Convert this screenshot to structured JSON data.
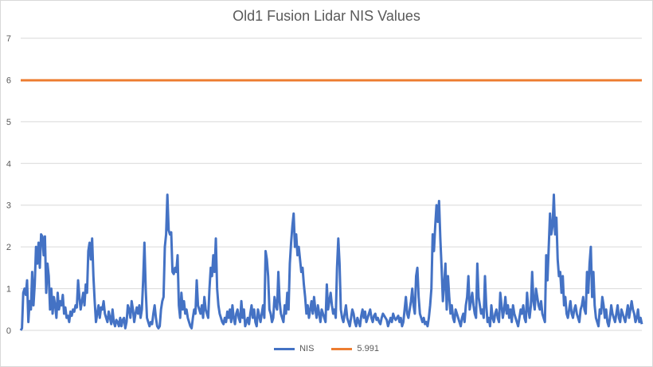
{
  "chart_data": {
    "type": "line",
    "title": "Old1 Fusion Lidar NIS Values",
    "xlabel": "",
    "ylabel": "",
    "ylim": [
      0,
      7
    ],
    "yticks": [
      "0",
      "1",
      "2",
      "3",
      "4",
      "5",
      "6",
      "7"
    ],
    "grid": true,
    "legend_position": "bottom",
    "series": [
      {
        "name": "NIS",
        "color": "#4472c4",
        "values": [
          0.0,
          0.05,
          0.9,
          1.0,
          0.85,
          1.2,
          0.2,
          0.7,
          0.5,
          1.4,
          0.6,
          1.1,
          2.0,
          1.6,
          2.1,
          1.5,
          2.3,
          2.25,
          1.8,
          2.25,
          0.9,
          1.6,
          1.3,
          0.5,
          1.0,
          0.4,
          0.8,
          0.6,
          0.3,
          0.9,
          0.5,
          0.7,
          0.6,
          0.85,
          0.4,
          0.55,
          0.3,
          0.35,
          0.2,
          0.45,
          0.35,
          0.5,
          0.45,
          0.6,
          0.55,
          1.2,
          0.8,
          0.5,
          0.7,
          0.9,
          0.6,
          1.1,
          0.9,
          1.9,
          2.1,
          1.7,
          2.2,
          1.3,
          0.7,
          0.2,
          0.4,
          0.6,
          0.3,
          0.55,
          0.5,
          0.7,
          0.4,
          0.3,
          0.2,
          0.45,
          0.3,
          0.15,
          0.5,
          0.2,
          0.1,
          0.25,
          0.2,
          0.1,
          0.3,
          0.1,
          0.25,
          0.3,
          0.05,
          0.2,
          0.6,
          0.5,
          0.3,
          0.7,
          0.5,
          0.2,
          0.4,
          0.55,
          0.4,
          0.6,
          0.3,
          0.5,
          1.2,
          2.1,
          1.0,
          0.3,
          0.2,
          0.1,
          0.2,
          0.15,
          0.4,
          0.6,
          0.3,
          0.1,
          0.05,
          0.1,
          0.5,
          0.7,
          0.8,
          2.0,
          2.3,
          3.25,
          2.4,
          2.3,
          2.35,
          1.4,
          1.35,
          1.5,
          1.4,
          1.8,
          0.6,
          0.3,
          0.9,
          0.5,
          0.7,
          0.4,
          0.5,
          0.3,
          0.2,
          0.1,
          0.05,
          0.3,
          0.5,
          0.4,
          1.2,
          0.6,
          0.5,
          0.4,
          0.6,
          0.3,
          0.8,
          0.5,
          0.4,
          0.3,
          1.0,
          1.5,
          1.3,
          1.8,
          1.4,
          2.2,
          1.0,
          0.6,
          0.4,
          0.3,
          0.2,
          0.15,
          0.3,
          0.2,
          0.45,
          0.3,
          0.5,
          0.2,
          0.6,
          0.3,
          0.15,
          0.4,
          0.5,
          0.3,
          0.2,
          0.7,
          0.3,
          0.5,
          0.1,
          0.2,
          0.3,
          0.15,
          0.4,
          0.6,
          0.3,
          0.5,
          0.2,
          0.1,
          0.5,
          0.35,
          0.2,
          0.4,
          0.6,
          0.3,
          1.9,
          1.7,
          1.3,
          0.5,
          0.4,
          0.2,
          0.3,
          0.8,
          0.6,
          0.5,
          1.4,
          0.7,
          0.4,
          0.3,
          0.2,
          0.6,
          0.4,
          0.9,
          0.5,
          1.6,
          2.1,
          2.5,
          2.8,
          2.0,
          2.3,
          1.8,
          2.0,
          1.7,
          1.4,
          1.5,
          1.1,
          0.8,
          0.4,
          0.6,
          0.3,
          0.5,
          0.7,
          0.4,
          0.8,
          0.5,
          0.3,
          0.6,
          0.4,
          0.2,
          0.5,
          0.4,
          0.3,
          0.2,
          1.1,
          0.5,
          0.7,
          0.9,
          0.6,
          0.4,
          0.5,
          0.3,
          1.5,
          2.2,
          1.6,
          0.5,
          0.3,
          0.2,
          0.4,
          0.6,
          0.3,
          0.2,
          0.1,
          0.3,
          0.5,
          0.4,
          0.2,
          0.1,
          0.3,
          0.2,
          0.1,
          0.35,
          0.5,
          0.3,
          0.45,
          0.2,
          0.3,
          0.4,
          0.5,
          0.3,
          0.2,
          0.35,
          0.4,
          0.25,
          0.3,
          0.2,
          0.15,
          0.3,
          0.4,
          0.35,
          0.3,
          0.25,
          0.1,
          0.2,
          0.3,
          0.2,
          0.4,
          0.3,
          0.25,
          0.3,
          0.35,
          0.2,
          0.3,
          0.1,
          0.2,
          0.5,
          0.8,
          0.4,
          0.3,
          0.5,
          0.7,
          1.0,
          0.6,
          0.4,
          1.3,
          1.5,
          0.8,
          0.4,
          0.3,
          0.2,
          0.3,
          0.15,
          0.2,
          0.1,
          0.3,
          0.6,
          1.0,
          2.3,
          1.9,
          2.5,
          3.0,
          2.6,
          3.1,
          2.2,
          1.5,
          0.7,
          1.1,
          1.6,
          0.5,
          1.3,
          0.8,
          0.4,
          0.6,
          0.3,
          0.2,
          0.5,
          0.4,
          0.3,
          0.2,
          0.1,
          0.3,
          0.4,
          0.2,
          0.6,
          0.8,
          1.3,
          0.5,
          0.7,
          0.9,
          0.6,
          0.4,
          0.3,
          1.6,
          0.8,
          0.6,
          0.4,
          0.5,
          0.3,
          1.3,
          0.6,
          0.2,
          0.3,
          0.1,
          0.6,
          0.3,
          0.2,
          0.4,
          0.5,
          0.3,
          0.2,
          0.9,
          0.6,
          0.3,
          0.5,
          0.8,
          0.4,
          0.6,
          0.3,
          0.5,
          0.2,
          0.6,
          0.4,
          0.3,
          0.2,
          0.1,
          0.3,
          0.5,
          0.4,
          0.6,
          0.3,
          0.2,
          0.9,
          0.5,
          0.3,
          0.6,
          1.4,
          0.7,
          0.5,
          1.0,
          0.8,
          0.6,
          0.5,
          0.7,
          0.4,
          0.3,
          0.2,
          1.8,
          1.2,
          2.0,
          2.8,
          2.3,
          2.5,
          3.25,
          2.3,
          2.7,
          1.7,
          1.3,
          1.4,
          0.9,
          1.3,
          0.6,
          0.8,
          0.4,
          0.3,
          0.5,
          0.7,
          0.4,
          0.3,
          0.5,
          0.6,
          0.4,
          0.3,
          0.2,
          0.5,
          0.6,
          0.8,
          0.5,
          0.4,
          1.4,
          0.9,
          1.6,
          2.0,
          0.8,
          1.4,
          0.6,
          0.3,
          0.2,
          0.1,
          0.5,
          0.4,
          0.8,
          0.6,
          0.3,
          0.5,
          0.2,
          0.1,
          0.3,
          0.6,
          0.4,
          0.3,
          0.2,
          0.4,
          0.6,
          0.3,
          0.2,
          0.5,
          0.4,
          0.3,
          0.2,
          0.4,
          0.6,
          0.3,
          0.5,
          0.7,
          0.5,
          0.4,
          0.2,
          0.3,
          0.5,
          0.2,
          0.3,
          0.15
        ],
        "line_width": 3
      },
      {
        "name": "5.991",
        "color": "#ed7d31",
        "values": [
          5.991,
          5.991
        ],
        "line_width": 3
      }
    ]
  }
}
